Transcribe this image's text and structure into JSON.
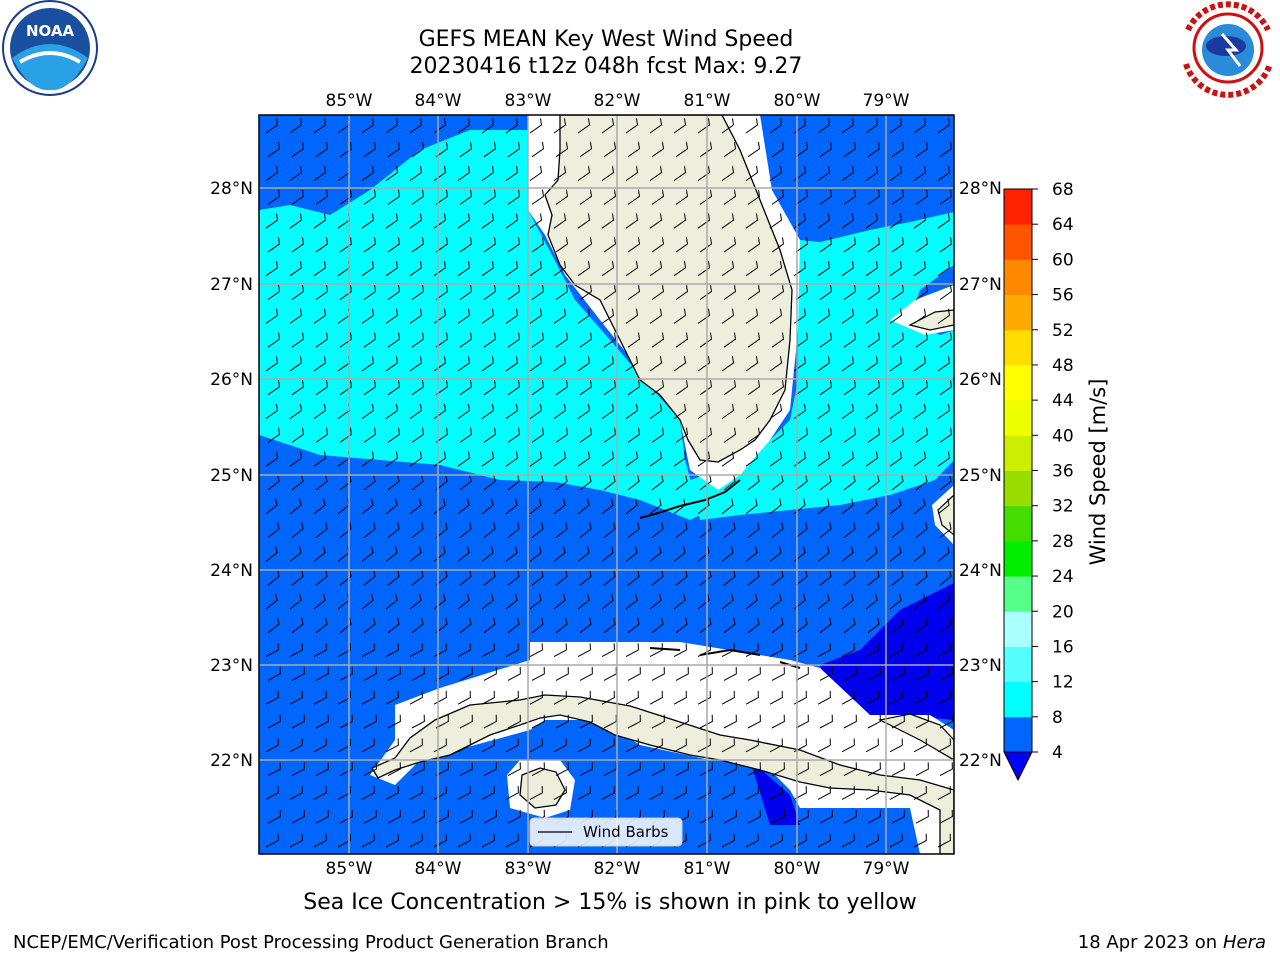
{
  "header": {
    "title": "GEFS MEAN Key West Wind Speed",
    "subtitle": "20230416 t12z 048h fcst   Max: 9.27"
  },
  "logos": {
    "left": "NOAA",
    "right": "NATIONAL WEATHER SERVICE"
  },
  "map": {
    "lon_labels": [
      "85°W",
      "84°W",
      "83°W",
      "82°W",
      "81°W",
      "80°W",
      "79°W"
    ],
    "lat_labels": [
      "28°N",
      "27°N",
      "26°N",
      "25°N",
      "24°N",
      "23°N",
      "22°N"
    ],
    "legend_label": "Wind Barbs"
  },
  "colorbar": {
    "label": "Wind Speed [m/s]",
    "ticks": [
      "4",
      "8",
      "12",
      "16",
      "20",
      "24",
      "28",
      "32",
      "36",
      "40",
      "44",
      "48",
      "52",
      "56",
      "60",
      "64",
      "68"
    ],
    "colors": [
      "#0066ff",
      "#00ffff",
      "#55ffff",
      "#aaffff",
      "#55ff88",
      "#00ee00",
      "#44dd00",
      "#99dd00",
      "#ccee00",
      "#eeff00",
      "#ffff00",
      "#ffdd00",
      "#ffaa00",
      "#ff8800",
      "#ff5500",
      "#ff2200",
      "#ff0000"
    ],
    "under_color": "#0000ff"
  },
  "colors": {
    "wind_4_8": "#0066ff",
    "wind_8_12": "#00ffff",
    "wind_lt_4": "#0000ee",
    "land": "#eeeedc"
  },
  "notes": {
    "sea_ice": "Sea Ice Concentration > 15% is shown in pink to yellow"
  },
  "footer": {
    "left": "NCEP/EMC/Verification Post Processing Product Generation Branch",
    "date": "18 Apr 2023 on ",
    "machine": "Hera"
  }
}
